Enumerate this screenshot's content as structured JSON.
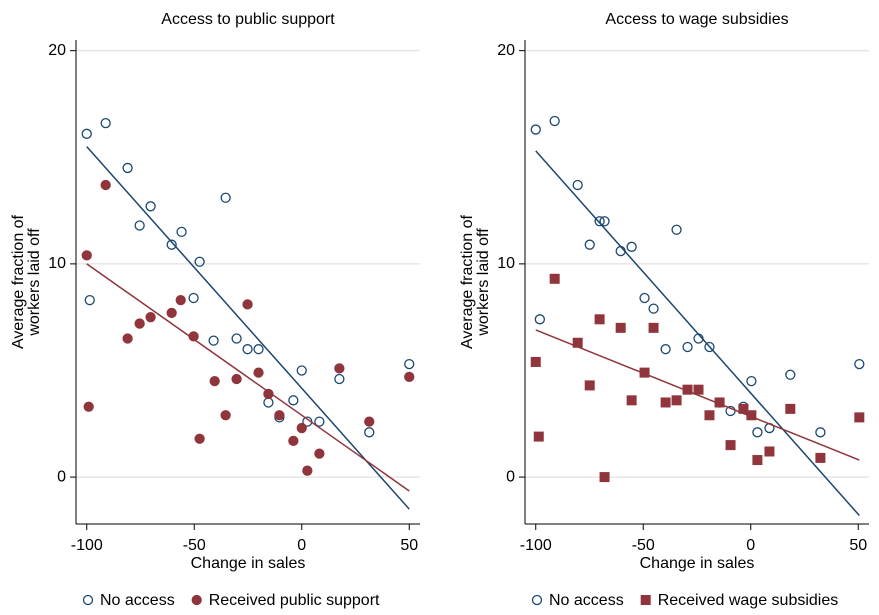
{
  "chart_data": [
    {
      "type": "scatter",
      "title": "Access to public support",
      "x_label": "Change in sales",
      "y_label": [
        "Average fraction of",
        "workers laid off"
      ],
      "xlim": [
        -105,
        55
      ],
      "ylim": [
        -2.2,
        20.5
      ],
      "xticks": [
        -100,
        -50,
        0,
        50
      ],
      "yticks": [
        0,
        10,
        20
      ],
      "grid": true,
      "series": [
        {
          "name": "No access",
          "color": "#1a476f",
          "marker": "hollow-circle",
          "x": [
            -100,
            -91.2,
            -81,
            -70.3,
            -75.4,
            -60.5,
            -55.9,
            -47.5,
            -50.3,
            -35.4,
            -98.6,
            -41,
            -30.3,
            -20.1,
            -25.2,
            -15.5,
            -10.4,
            -3.9,
            0,
            2.6,
            8.2,
            17.5,
            31.4,
            50
          ],
          "values": [
            16.1,
            16.6,
            14.5,
            12.7,
            11.8,
            10.9,
            11.5,
            10.1,
            8.4,
            13.1,
            8.3,
            6.4,
            6.5,
            6.0,
            6.0,
            3.5,
            2.8,
            3.6,
            5.0,
            2.6,
            2.6,
            4.6,
            2.1,
            5.3
          ],
          "fit": {
            "x": [
              -100,
              50
            ],
            "values": [
              15.5,
              -1.5
            ]
          }
        },
        {
          "name": "Received public support",
          "color": "#90353b",
          "marker": "filled-circle",
          "x": [
            -100,
            -99.1,
            -91.2,
            -81,
            -75.4,
            -70.3,
            -60.5,
            -56.3,
            -50.3,
            -47.5,
            -40.5,
            -35.4,
            -30.3,
            -25.2,
            -20.1,
            -15.5,
            -10.4,
            -3.9,
            0,
            2.6,
            8.2,
            17.5,
            31.4,
            50
          ],
          "values": [
            10.4,
            3.3,
            13.7,
            6.5,
            7.2,
            7.5,
            7.7,
            8.3,
            6.6,
            1.8,
            4.5,
            2.9,
            4.6,
            8.1,
            4.9,
            3.9,
            2.9,
            1.7,
            2.3,
            0.3,
            1.1,
            5.1,
            2.6,
            4.7
          ],
          "fit": {
            "x": [
              -100,
              50
            ],
            "values": [
              10.0,
              -0.65
            ]
          }
        }
      ]
    },
    {
      "type": "scatter",
      "title": "Access to wage subsidies",
      "x_label": "Change in sales",
      "y_label": [
        "Average fraction of",
        "workers laid off"
      ],
      "xlim": [
        -105,
        55
      ],
      "ylim": [
        -2.2,
        20.5
      ],
      "xticks": [
        -100,
        -50,
        0,
        50
      ],
      "yticks": [
        0,
        10,
        20
      ],
      "grid": true,
      "series": [
        {
          "name": "No access",
          "color": "#1a476f",
          "marker": "hollow-circle",
          "x": [
            -100,
            -91.2,
            -80.5,
            -98.1,
            -74.9,
            -70.3,
            -68,
            -60.5,
            -55.4,
            -49.4,
            -45.2,
            -39.6,
            -34.5,
            -29.4,
            -24.3,
            -19.2,
            -14.5,
            -9.4,
            -3.4,
            0.3,
            3.1,
            8.7,
            18.4,
            32.4,
            50.5
          ],
          "values": [
            16.3,
            16.7,
            13.7,
            7.4,
            10.9,
            12.0,
            12.0,
            10.6,
            10.8,
            8.4,
            7.9,
            6.0,
            11.6,
            6.1,
            6.5,
            6.1,
            3.5,
            3.1,
            3.3,
            4.5,
            2.1,
            2.3,
            4.8,
            2.1,
            5.3
          ],
          "fit": {
            "x": [
              -100,
              50.5
            ],
            "values": [
              15.3,
              -1.8
            ]
          }
        },
        {
          "name": "Received wage subsidies",
          "color": "#90353b",
          "marker": "square",
          "x": [
            -100,
            -98.6,
            -91.2,
            -80.5,
            -74.9,
            -70.3,
            -68,
            -60.5,
            -55.4,
            -49.4,
            -45.2,
            -39.6,
            -34.5,
            -29.4,
            -24.3,
            -19.2,
            -14.5,
            -9.4,
            -3.4,
            0.3,
            3.1,
            8.7,
            18.4,
            32.4,
            50.5
          ],
          "values": [
            5.4,
            1.9,
            9.3,
            6.3,
            4.3,
            7.4,
            0,
            7.0,
            3.6,
            4.9,
            7.0,
            3.5,
            3.6,
            4.1,
            4.1,
            2.9,
            3.5,
            1.5,
            3.2,
            2.9,
            0.8,
            1.2,
            3.2,
            0.9,
            2.8
          ],
          "fit": {
            "x": [
              -100,
              50.5
            ],
            "values": [
              6.9,
              0.8
            ]
          }
        }
      ]
    }
  ]
}
